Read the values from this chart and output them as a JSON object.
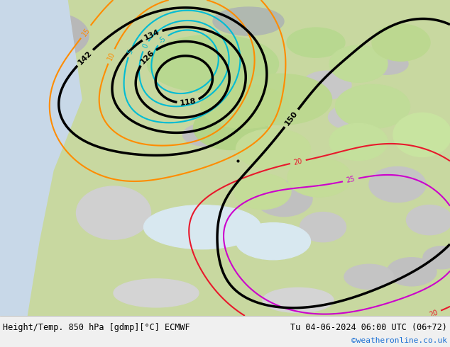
{
  "title_left": "Height/Temp. 850 hPa [gdmp][°C] ECMWF",
  "title_right": "Tu 04-06-2024 06:00 UTC (06+72)",
  "credit": "©weatheronline.co.uk",
  "figsize": [
    6.34,
    4.9
  ],
  "dpi": 100,
  "credit_color": "#1a6fd4"
}
